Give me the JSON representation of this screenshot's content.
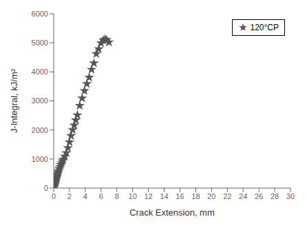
{
  "chart_data": {
    "type": "scatter",
    "xlabel": "Crack Extension, mm",
    "ylabel": "J-Integral, kJ/m²",
    "x": [
      0.05,
      0.1,
      0.15,
      0.2,
      0.25,
      0.3,
      0.35,
      0.4,
      0.45,
      0.5,
      0.55,
      0.6,
      0.7,
      0.8,
      0.9,
      1.0,
      1.1,
      1.2,
      1.4,
      1.6,
      1.8,
      2.0,
      2.2,
      2.4,
      2.6,
      2.8,
      3.0,
      3.3,
      3.6,
      3.9,
      4.2,
      4.5,
      4.8,
      5.1,
      5.4,
      5.7,
      6.0,
      6.3,
      6.5,
      6.7,
      7.0
    ],
    "series": [
      {
        "name": "120°CP",
        "color": "#555555",
        "marker": "star",
        "values": [
          30,
          80,
          130,
          180,
          230,
          290,
          340,
          390,
          440,
          490,
          540,
          590,
          660,
          730,
          800,
          860,
          930,
          990,
          1090,
          1210,
          1380,
          1580,
          1800,
          2000,
          2160,
          2340,
          2510,
          2840,
          3090,
          3350,
          3590,
          3810,
          4080,
          4300,
          4620,
          4790,
          4990,
          5090,
          5120,
          5100,
          5020
        ]
      }
    ],
    "xlim": [
      0,
      30
    ],
    "ylim": [
      0,
      6000
    ],
    "xticks": [
      0,
      2,
      4,
      6,
      8,
      10,
      12,
      14,
      16,
      18,
      20,
      22,
      24,
      26,
      28,
      30
    ],
    "yticks": [
      0,
      1000,
      2000,
      3000,
      4000,
      5000,
      6000
    ],
    "grid": false,
    "legend": "upper right"
  }
}
